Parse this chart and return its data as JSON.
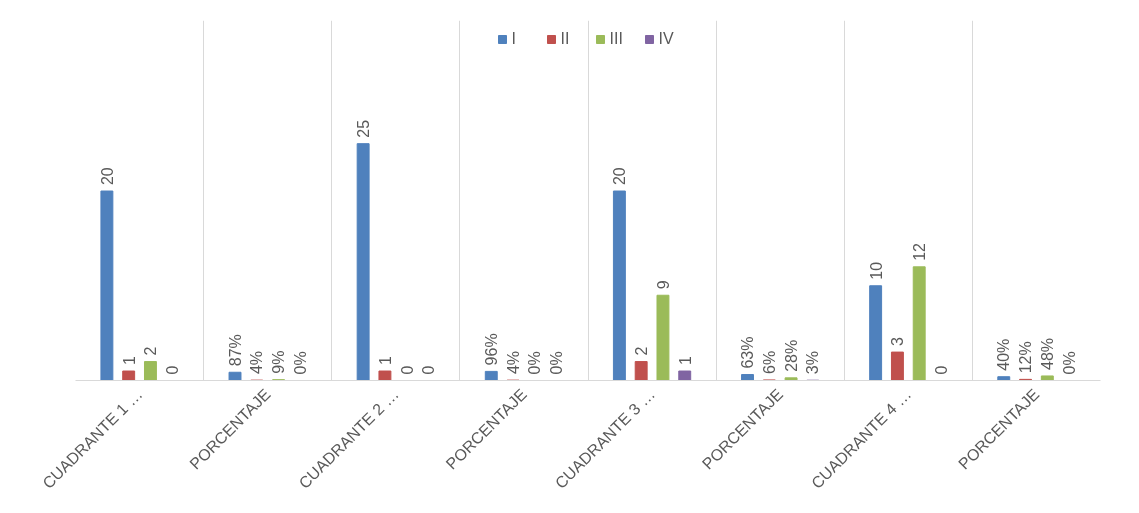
{
  "chart_data": {
    "type": "bar",
    "categories": [
      "CUADRANTE 1 …",
      "PORCENTAJE",
      "CUADRANTE 2 …",
      "PORCENTAJE",
      "CUADRANTE 3 …",
      "PORCENTAJE",
      "CUADRANTE 4 …",
      "PORCENTAJE"
    ],
    "series": [
      {
        "name": "I",
        "color": "#4f81bd",
        "values": [
          20,
          0.87,
          25,
          0.96,
          20,
          0.63,
          10,
          0.4
        ],
        "value_labels": [
          "20",
          "87%",
          "25",
          "96%",
          "20",
          "63%",
          "10",
          "40%"
        ]
      },
      {
        "name": "II",
        "color": "#c0504d",
        "values": [
          1,
          0.04,
          1,
          0.04,
          2,
          0.06,
          3,
          0.12
        ],
        "value_labels": [
          "1",
          "4%",
          "1",
          "4%",
          "2",
          "6%",
          "3",
          "12%"
        ]
      },
      {
        "name": "III",
        "color": "#9bbb59",
        "values": [
          2,
          0.09,
          0,
          0,
          9,
          0.28,
          12,
          0.48
        ],
        "value_labels": [
          "2",
          "9%",
          "0",
          "0%",
          "9",
          "28%",
          "12",
          "48%"
        ]
      },
      {
        "name": "IV",
        "color": "#8064a2",
        "values": [
          0,
          0,
          0,
          0,
          1,
          0.03,
          0,
          0
        ],
        "value_labels": [
          "0",
          "0%",
          "0",
          "0%",
          "1",
          "3%",
          "0",
          "0%"
        ]
      }
    ],
    "ylim": [
      0,
      38
    ],
    "grid": "x",
    "legend": "top",
    "tick_labels": "x"
  }
}
